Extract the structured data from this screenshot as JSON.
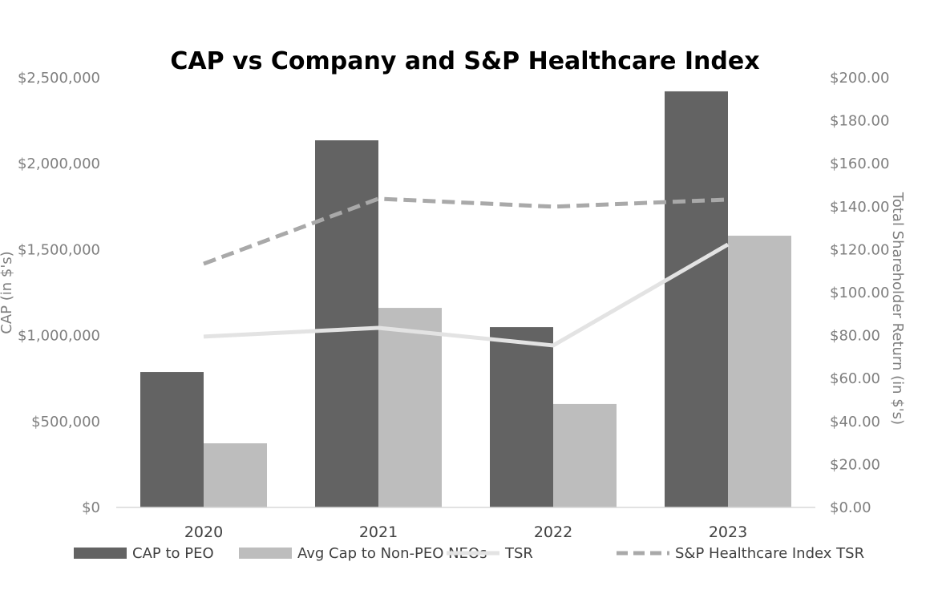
{
  "chart_data": {
    "type": "bar",
    "title": "CAP vs Company and S&P Healthcare Index",
    "categories": [
      "2020",
      "2021",
      "2022",
      "2023"
    ],
    "ylabel": "CAP (in $'s)",
    "y2label": "Total Shareholder Return (in $'s)",
    "ylim": [
      0,
      2500000
    ],
    "y2lim": [
      0,
      200
    ],
    "yticks": [
      "$0",
      "$500,000",
      "$1,000,000",
      "$1,500,000",
      "$2,000,000",
      "$2,500,000"
    ],
    "y2ticks": [
      "$0.00",
      "$20.00",
      "$40.00",
      "$60.00",
      "$80.00",
      "$100.00",
      "$120.00",
      "$140.00",
      "$160.00",
      "$180.00",
      "$200.00"
    ],
    "grid": false,
    "legend_position": "bottom",
    "series": [
      {
        "name": "CAP to PEO",
        "type": "bar",
        "axis": "left",
        "color": "#636363",
        "values": [
          788000,
          2136000,
          1049000,
          2421000
        ]
      },
      {
        "name": "Avg Cap to Non-PEO NEOs",
        "type": "bar",
        "axis": "left",
        "color": "#bdbdbd",
        "values": [
          373000,
          1161000,
          602000,
          1581000
        ]
      },
      {
        "name": "TSR",
        "type": "line",
        "axis": "right",
        "color": "#e3e3e3",
        "dash": false,
        "values": [
          79.5,
          83.6,
          75.4,
          122.4
        ]
      },
      {
        "name": "S&P Healthcare Index TSR",
        "type": "line",
        "axis": "right",
        "color": "#a9a9a9",
        "dash": true,
        "values": [
          113.4,
          143.7,
          140.0,
          143.3
        ]
      }
    ]
  }
}
